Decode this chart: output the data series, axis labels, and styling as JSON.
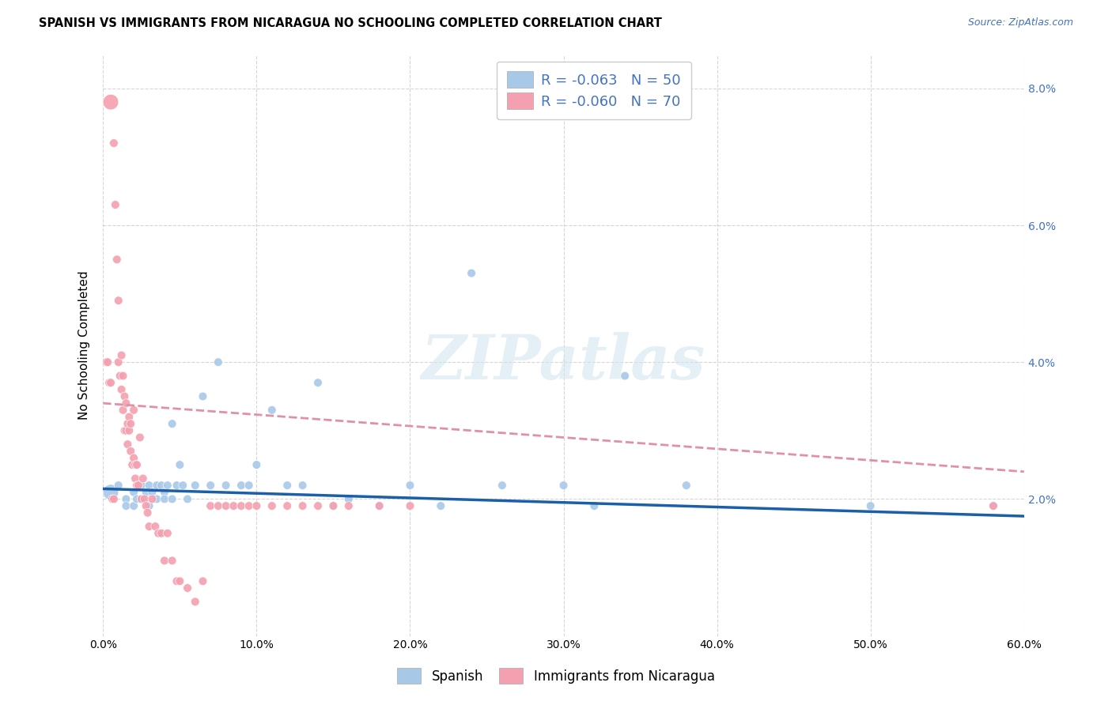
{
  "title": "SPANISH VS IMMIGRANTS FROM NICARAGUA NO SCHOOLING COMPLETED CORRELATION CHART",
  "source": "Source: ZipAtlas.com",
  "ylabel": "No Schooling Completed",
  "xlim": [
    0.0,
    0.6
  ],
  "ylim": [
    0.0,
    0.085
  ],
  "xticks": [
    0.0,
    0.1,
    0.2,
    0.3,
    0.4,
    0.5,
    0.6
  ],
  "yticks": [
    0.0,
    0.02,
    0.04,
    0.06,
    0.08
  ],
  "xticklabels": [
    "0.0%",
    "10.0%",
    "20.0%",
    "30.0%",
    "40.0%",
    "50.0%",
    "60.0%"
  ],
  "yticklabels_right": [
    "",
    "2.0%",
    "4.0%",
    "6.0%",
    "8.0%"
  ],
  "blue_R": "-0.063",
  "blue_N": "50",
  "pink_R": "-0.060",
  "pink_N": "70",
  "legend_labels": [
    "Spanish",
    "Immigrants from Nicaragua"
  ],
  "blue_color": "#a8c8e8",
  "pink_color": "#f4a0b0",
  "blue_line_color": "#1a5fa8",
  "pink_line_color": "#d94070",
  "pink_line_dash": "#e090a8",
  "watermark": "ZIPatlas",
  "blue_scatter_x": [
    0.005,
    0.01,
    0.015,
    0.015,
    0.02,
    0.02,
    0.022,
    0.025,
    0.025,
    0.028,
    0.03,
    0.03,
    0.032,
    0.035,
    0.035,
    0.038,
    0.04,
    0.04,
    0.042,
    0.045,
    0.045,
    0.048,
    0.05,
    0.052,
    0.055,
    0.06,
    0.065,
    0.07,
    0.075,
    0.08,
    0.09,
    0.095,
    0.1,
    0.11,
    0.12,
    0.13,
    0.14,
    0.15,
    0.16,
    0.18,
    0.2,
    0.22,
    0.24,
    0.26,
    0.3,
    0.32,
    0.34,
    0.38,
    0.5,
    0.58
  ],
  "blue_scatter_y": [
    0.021,
    0.022,
    0.02,
    0.019,
    0.021,
    0.019,
    0.02,
    0.02,
    0.022,
    0.021,
    0.022,
    0.019,
    0.021,
    0.02,
    0.022,
    0.022,
    0.021,
    0.02,
    0.022,
    0.031,
    0.02,
    0.022,
    0.025,
    0.022,
    0.02,
    0.022,
    0.035,
    0.022,
    0.04,
    0.022,
    0.022,
    0.022,
    0.025,
    0.033,
    0.022,
    0.022,
    0.037,
    0.019,
    0.02,
    0.019,
    0.022,
    0.019,
    0.053,
    0.022,
    0.022,
    0.019,
    0.038,
    0.022,
    0.019,
    0.019
  ],
  "blue_scatter_size": [
    200,
    60,
    60,
    60,
    60,
    60,
    60,
    60,
    60,
    60,
    60,
    60,
    60,
    60,
    60,
    60,
    60,
    60,
    60,
    60,
    60,
    60,
    60,
    60,
    60,
    60,
    60,
    60,
    60,
    60,
    60,
    60,
    60,
    60,
    60,
    60,
    60,
    60,
    60,
    60,
    60,
    60,
    60,
    60,
    60,
    60,
    60,
    60,
    60,
    60
  ],
  "pink_scatter_x": [
    0.002,
    0.003,
    0.004,
    0.005,
    0.005,
    0.006,
    0.007,
    0.007,
    0.008,
    0.009,
    0.01,
    0.01,
    0.011,
    0.012,
    0.012,
    0.013,
    0.013,
    0.014,
    0.014,
    0.015,
    0.015,
    0.016,
    0.016,
    0.017,
    0.017,
    0.018,
    0.018,
    0.019,
    0.02,
    0.02,
    0.021,
    0.021,
    0.022,
    0.022,
    0.023,
    0.024,
    0.025,
    0.026,
    0.027,
    0.028,
    0.029,
    0.03,
    0.032,
    0.034,
    0.036,
    0.038,
    0.04,
    0.042,
    0.045,
    0.048,
    0.05,
    0.055,
    0.06,
    0.065,
    0.07,
    0.075,
    0.08,
    0.085,
    0.09,
    0.095,
    0.1,
    0.11,
    0.12,
    0.13,
    0.14,
    0.15,
    0.16,
    0.18,
    0.2,
    0.58
  ],
  "pink_scatter_y": [
    0.04,
    0.04,
    0.037,
    0.078,
    0.037,
    0.02,
    0.072,
    0.02,
    0.063,
    0.055,
    0.049,
    0.04,
    0.038,
    0.036,
    0.041,
    0.033,
    0.038,
    0.035,
    0.03,
    0.034,
    0.03,
    0.031,
    0.028,
    0.03,
    0.032,
    0.027,
    0.031,
    0.025,
    0.026,
    0.033,
    0.023,
    0.025,
    0.022,
    0.025,
    0.022,
    0.029,
    0.02,
    0.023,
    0.02,
    0.019,
    0.018,
    0.016,
    0.02,
    0.016,
    0.015,
    0.015,
    0.011,
    0.015,
    0.011,
    0.008,
    0.008,
    0.007,
    0.005,
    0.008,
    0.019,
    0.019,
    0.019,
    0.019,
    0.019,
    0.019,
    0.019,
    0.019,
    0.019,
    0.019,
    0.019,
    0.019,
    0.019,
    0.019,
    0.019,
    0.019
  ],
  "pink_scatter_size": [
    60,
    60,
    60,
    200,
    60,
    60,
    60,
    60,
    60,
    60,
    60,
    60,
    60,
    60,
    60,
    60,
    60,
    60,
    60,
    60,
    60,
    60,
    60,
    60,
    60,
    60,
    60,
    60,
    60,
    60,
    60,
    60,
    60,
    60,
    60,
    60,
    60,
    60,
    60,
    60,
    60,
    60,
    60,
    60,
    60,
    60,
    60,
    60,
    60,
    60,
    60,
    60,
    60,
    60,
    60,
    60,
    60,
    60,
    60,
    60,
    60,
    60,
    60,
    60,
    60,
    60,
    60,
    60,
    60,
    60
  ],
  "blue_line_x0": 0.0,
  "blue_line_y0": 0.0215,
  "blue_line_x1": 0.6,
  "blue_line_y1": 0.0175,
  "pink_line_x0": 0.0,
  "pink_line_y0": 0.034,
  "pink_line_x1": 0.6,
  "pink_line_y1": 0.024
}
